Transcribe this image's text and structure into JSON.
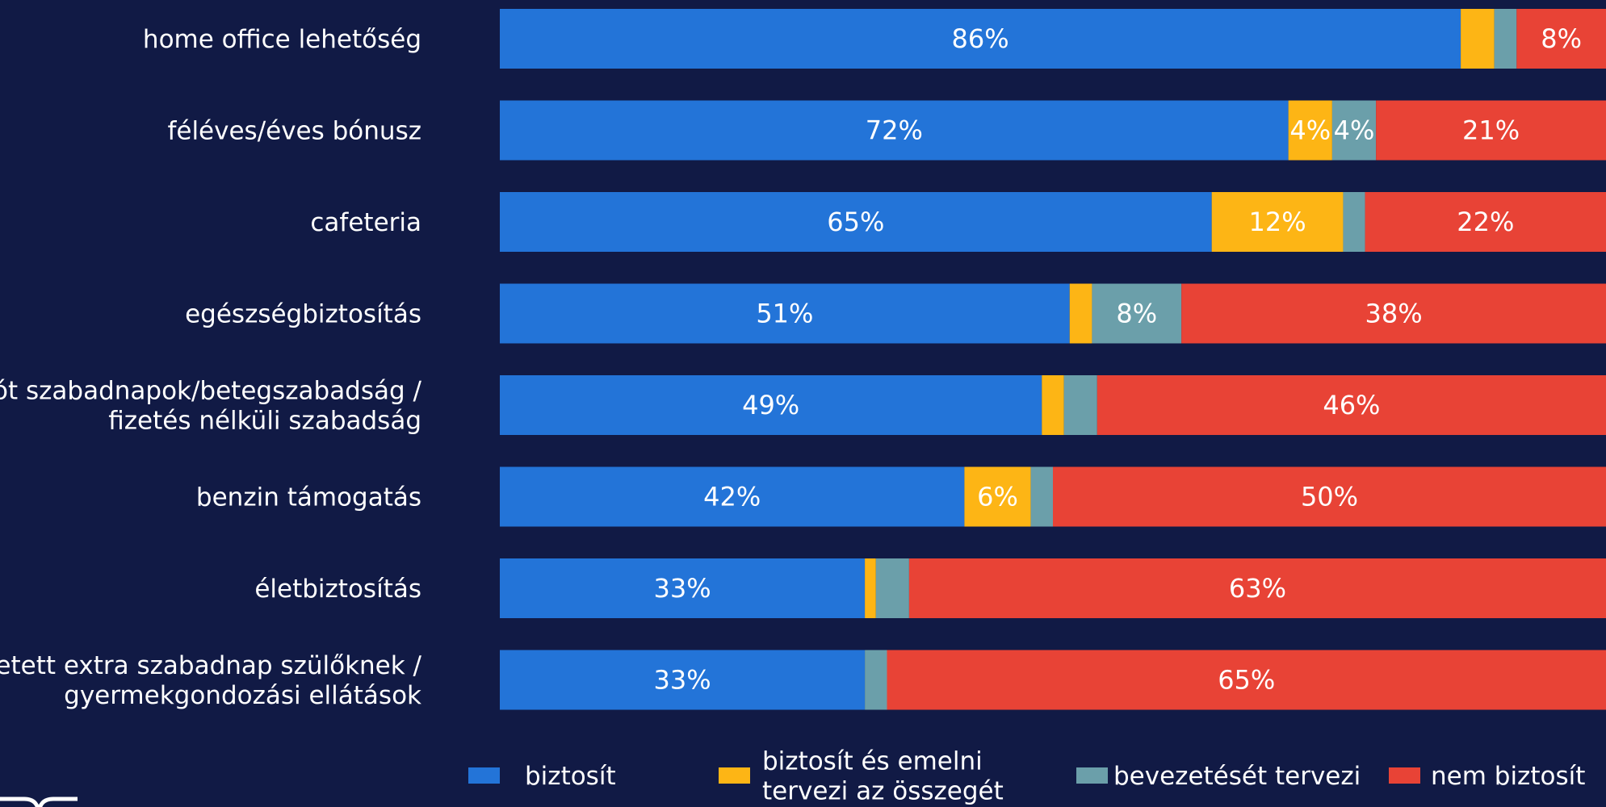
{
  "chart_data": {
    "type": "bar",
    "orientation": "horizontal",
    "stacked": true,
    "categories": [
      [
        "home office lehetőség"
      ],
      [
        "féléves/éves bónusz"
      ],
      [
        "cafeteria"
      ],
      [
        "egészségbiztosítás"
      ],
      [
        "pót szabadnapok/betegszabadság /",
        "fizetés nélküli szabadság"
      ],
      [
        "benzin támogatás"
      ],
      [
        "életbiztosítás"
      ],
      [
        "fizetett extra szabadnap szülőknek /",
        "gyermekgondozási ellátások"
      ]
    ],
    "series": [
      {
        "name": "biztosít",
        "color": "#2374d8",
        "values": [
          86,
          72,
          65,
          51,
          49,
          42,
          33,
          33
        ]
      },
      {
        "name": "biztosít és emelni tervezi az összegét",
        "legend_lines": [
          "biztosít és emelni",
          "tervezi az összegét"
        ],
        "color": "#fdb515",
        "values": [
          3,
          4,
          12,
          2,
          2,
          6,
          1,
          0
        ]
      },
      {
        "name": "bevezetését tervezi",
        "color": "#6b9faa",
        "values": [
          2,
          4,
          2,
          8,
          3,
          2,
          3,
          2
        ]
      },
      {
        "name": "nem biztosít",
        "color": "#e84336",
        "values": [
          8,
          21,
          22,
          38,
          46,
          50,
          63,
          65
        ]
      }
    ],
    "value_suffix": "%",
    "label_threshold": 4,
    "legend_position": "bottom",
    "grid": false
  }
}
